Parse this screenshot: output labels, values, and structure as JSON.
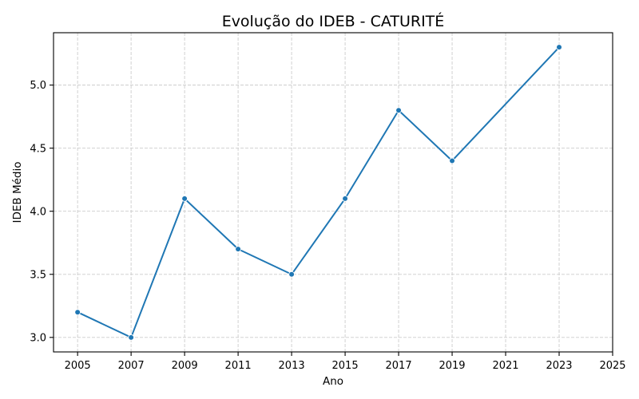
{
  "chart_data": {
    "type": "line",
    "title": "Evolução do IDEB - CATURITÉ",
    "xlabel": "Ano",
    "ylabel": "IDEB Médio",
    "x": [
      2005,
      2007,
      2009,
      2011,
      2013,
      2015,
      2017,
      2019,
      2023
    ],
    "series": [
      {
        "values": [
          3.2,
          3.0,
          4.1,
          3.7,
          3.5,
          4.1,
          4.8,
          4.4,
          5.3
        ],
        "color": "#1f77b4",
        "marker": "circle"
      }
    ],
    "xticks": [
      "2005",
      "2007",
      "2009",
      "2011",
      "2013",
      "2015",
      "2017",
      "2019",
      "2021",
      "2023",
      "2025"
    ],
    "yticks": [
      "3.0",
      "3.5",
      "4.0",
      "4.5",
      "5.0"
    ],
    "xlim": [
      2004.1,
      2025
    ],
    "ylim": [
      2.885,
      5.415
    ],
    "grid": true,
    "grid_style": "dashed",
    "grid_color": "#cccccc",
    "legend": "none"
  }
}
